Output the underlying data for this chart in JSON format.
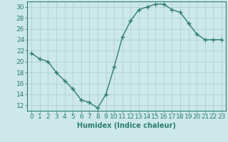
{
  "x": [
    0,
    1,
    2,
    3,
    4,
    5,
    6,
    7,
    8,
    9,
    10,
    11,
    12,
    13,
    14,
    15,
    16,
    17,
    18,
    19,
    20,
    21,
    22,
    23
  ],
  "y": [
    21.5,
    20.5,
    20.0,
    18.0,
    16.5,
    15.0,
    13.0,
    12.5,
    11.5,
    14.0,
    19.0,
    24.5,
    27.5,
    29.5,
    30.0,
    30.5,
    30.5,
    29.5,
    29.0,
    27.0,
    25.0,
    24.0,
    24.0,
    24.0
  ],
  "line_color": "#2e7d6e",
  "bg_color": "#cce8e8",
  "grid_color": "#aacccc",
  "xlabel": "Humidex (Indice chaleur)",
  "ylim": [
    11,
    31
  ],
  "xlim": [
    -0.5,
    23.5
  ],
  "yticks": [
    12,
    14,
    16,
    18,
    20,
    22,
    24,
    26,
    28,
    30
  ],
  "xticks": [
    0,
    1,
    2,
    3,
    4,
    5,
    6,
    7,
    8,
    9,
    10,
    11,
    12,
    13,
    14,
    15,
    16,
    17,
    18,
    19,
    20,
    21,
    22,
    23
  ],
  "xlabel_fontsize": 7,
  "tick_fontsize": 6.5,
  "marker": "+",
  "marker_size": 4,
  "line_width": 1.0
}
